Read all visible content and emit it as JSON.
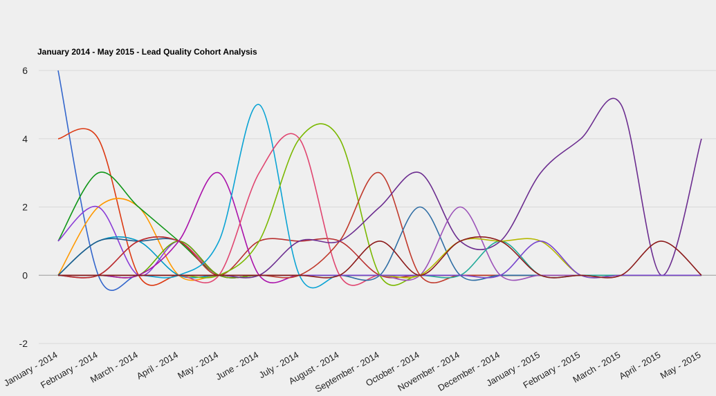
{
  "chart_data": {
    "type": "line",
    "title": "January 2014 - May 2015 - Lead Quality Cohort Analysis",
    "xlabel": "",
    "ylabel": "",
    "ylim": [
      -2,
      6
    ],
    "yticks": [
      6,
      4,
      2,
      0,
      -2
    ],
    "grid": true,
    "smooth": true,
    "categories": [
      "January - 2014",
      "February - 2014",
      "March - 2014",
      "April - 2014",
      "May - 2014",
      "June - 2014",
      "July - 2014",
      "August - 2014",
      "September - 2014",
      "October - 2014",
      "November - 2014",
      "December - 2014",
      "January - 2015",
      "February - 2015",
      "March - 2015",
      "April - 2015",
      "May - 2015"
    ],
    "series": [
      {
        "color": "#3366cc",
        "values": [
          6,
          0,
          0,
          0,
          0,
          0,
          0,
          0,
          0,
          0,
          0,
          0,
          0,
          0,
          0,
          0,
          0
        ]
      },
      {
        "color": "#dc3912",
        "values": [
          4,
          4,
          0,
          0,
          0,
          0,
          0,
          0,
          0,
          0,
          0,
          0,
          0,
          0,
          0,
          0,
          0
        ]
      },
      {
        "color": "#ff9900",
        "values": [
          0,
          2,
          2,
          0,
          0,
          0,
          0,
          0,
          0,
          0,
          0,
          0,
          0,
          0,
          0,
          0,
          0
        ]
      },
      {
        "color": "#109618",
        "values": [
          1,
          3,
          2,
          1,
          0,
          0,
          0,
          0,
          0,
          0,
          0,
          0,
          0,
          0,
          0,
          0,
          0
        ]
      },
      {
        "color": "#8a3bd6",
        "values": [
          1,
          2,
          0,
          1,
          0,
          0,
          0,
          0,
          0,
          0,
          0,
          0,
          0,
          0,
          0,
          0,
          0
        ]
      },
      {
        "color": "#0099c6",
        "values": [
          0,
          1,
          1,
          0,
          0,
          0,
          0,
          0,
          0,
          0,
          0,
          0,
          0,
          0,
          0,
          0,
          0
        ]
      },
      {
        "color": "#1f5d8c",
        "values": [
          0,
          1,
          1,
          1,
          0,
          0,
          0,
          0,
          0,
          0,
          0,
          0,
          0,
          0,
          0,
          0,
          0
        ]
      },
      {
        "color": "#dd4477",
        "values": [
          0,
          0,
          1,
          1,
          0,
          0,
          0,
          0,
          0,
          0,
          0,
          0,
          0,
          0,
          0,
          0,
          0
        ]
      },
      {
        "color": "#66aa00",
        "values": [
          0,
          0,
          0,
          1,
          0,
          0,
          0,
          0,
          0,
          0,
          0,
          0,
          0,
          0,
          0,
          0,
          0
        ]
      },
      {
        "color": "#b82e2e",
        "values": [
          0,
          0,
          1,
          1,
          0,
          1,
          1,
          1,
          0,
          0,
          0,
          0,
          0,
          0,
          0,
          0,
          0
        ]
      },
      {
        "color": "#aa11aa",
        "values": [
          0,
          0,
          0,
          1,
          3,
          0,
          0,
          0,
          0,
          0,
          0,
          0,
          0,
          0,
          0,
          0,
          0
        ]
      },
      {
        "color": "#0aa3d4",
        "values": [
          0,
          0,
          0,
          0,
          1,
          5,
          0,
          0,
          0,
          0,
          0,
          0,
          0,
          0,
          0,
          0,
          0
        ]
      },
      {
        "color": "#e04570",
        "values": [
          0,
          0,
          0,
          0,
          0,
          3,
          4,
          0,
          0,
          0,
          0,
          0,
          0,
          0,
          0,
          0,
          0
        ]
      },
      {
        "color": "#7ab800",
        "values": [
          0,
          0,
          0,
          0,
          0,
          1,
          4,
          4,
          0,
          0,
          0,
          0,
          0,
          0,
          0,
          0,
          0
        ]
      },
      {
        "color": "#c0392b",
        "values": [
          0,
          0,
          0,
          0,
          0,
          0,
          0,
          1,
          3,
          0,
          0,
          0,
          0,
          0,
          0,
          0,
          0
        ]
      },
      {
        "color": "#6b2c8f",
        "values": [
          0,
          0,
          0,
          0,
          0,
          0,
          1,
          1,
          2,
          3,
          1,
          1,
          3,
          4,
          5,
          0,
          4
        ]
      },
      {
        "color": "#2e6da4",
        "values": [
          0,
          0,
          0,
          0,
          0,
          0,
          0,
          0,
          0,
          2,
          0,
          0,
          0,
          0,
          0,
          0,
          0
        ]
      },
      {
        "color": "#9b51b8",
        "values": [
          0,
          0,
          0,
          0,
          0,
          0,
          0,
          0,
          0,
          0,
          2,
          0,
          0,
          0,
          0,
          0,
          0
        ]
      },
      {
        "color": "#22aa99",
        "values": [
          0,
          0,
          0,
          0,
          0,
          0,
          0,
          0,
          0,
          0,
          0,
          1,
          0,
          0,
          0,
          0,
          0
        ]
      },
      {
        "color": "#b5b800",
        "values": [
          0,
          0,
          0,
          0,
          0,
          0,
          0,
          0,
          0,
          0,
          1,
          1,
          1,
          0,
          0,
          0,
          0
        ]
      },
      {
        "color": "#7744cc",
        "values": [
          0,
          0,
          0,
          0,
          0,
          0,
          0,
          0,
          0,
          0,
          0,
          0,
          1,
          0,
          0,
          0,
          0
        ]
      },
      {
        "color": "#8b1a1a",
        "values": [
          0,
          0,
          0,
          0,
          0,
          0,
          0,
          0,
          1,
          0,
          1,
          1,
          0,
          0,
          0,
          1,
          0
        ]
      }
    ]
  }
}
